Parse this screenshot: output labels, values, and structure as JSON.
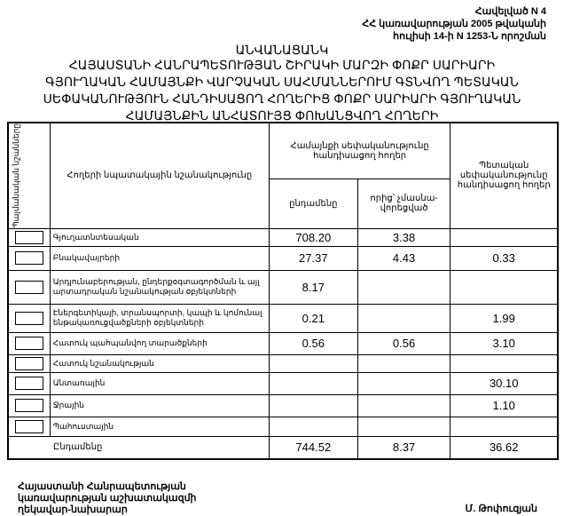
{
  "annex": {
    "line1": "Հավելված N 4",
    "line2": "ՀՀ կառավարության 2005 թվականի",
    "line3": "հուլիսի 14-ի N 1253-Ն որոշման"
  },
  "title": "ԱՆՎԱՆԱՑԱՆԿ",
  "subtitle": "ՀԱՅԱՍՏԱՆԻ ՀԱՆՐԱՊԵՏՈՒԹՅԱՆ ՇԻՐԱԿԻ ՄԱՐԶԻ ՓՈՔՐ ՍԱՐԻԱՐԻ ԳՅՈՒՂԱԿԱՆ ՀԱՄԱՅՆՔԻ ՎԱՐՉԱԿԱՆ ՍԱՀՄԱՆՆԵՐՈՒՄ ԳՏՆՎՈՂ ՊԵՏԱԿԱՆ ՍԵՓԱԿԱՆՈՒԹՅՈՒՆ ՀԱՆԴԻՍԱՑՈՂ ՀՈՂԵՐԻՑ ՓՈՔՐ ՍԱՐԻԱՐԻ ԳՅՈՒՂԱԿԱՆ ՀԱՄԱՅՆՔԻՆ ԱՆՀԱՏՈՒՅՑ ՓՈԽԱՆՑՎՈՂ ՀՈՂԵՐԻ",
  "table": {
    "headers": {
      "symbols": "Պայմանական նշանները",
      "purpose": "Հողերի նպատակային նշանակությունը",
      "community": "Համայնքի սեփականությունը հանդիսացող հողեր",
      "total": "ընդամենը",
      "not_privatized": "որից՝ չմասնա-վորեցված",
      "state": "Պետական սեփականությունը հանդիսացող հողեր"
    },
    "rows": [
      {
        "name": "Գյուղատնտեսական",
        "total": "708.20",
        "not_privatized": "3.38",
        "state": ""
      },
      {
        "name": "Բնակավայրերի",
        "total": "27.37",
        "not_privatized": "4.43",
        "state": "0.33"
      },
      {
        "name": "Արդյունաբերության, ընդերքօգտագործման և այլ արտադրական նշանակության օբյեկտների",
        "total": "8.17",
        "not_privatized": "",
        "state": ""
      },
      {
        "name": "Էներգետիկայի, տրանսպորտի, կապի և կոմունալ ենթակառուցվածքների օբյեկտների",
        "total": "0.21",
        "not_privatized": "",
        "state": "1.99"
      },
      {
        "name": "Հատուկ պահպանվող տարածքների",
        "total": "0.56",
        "not_privatized": "0.56",
        "state": "3.10"
      },
      {
        "name": "Հատուկ նշանակության",
        "total": "",
        "not_privatized": "",
        "state": ""
      },
      {
        "name": "Անտառային",
        "total": "",
        "not_privatized": "",
        "state": "30.10"
      },
      {
        "name": "Ջրային",
        "total": "",
        "not_privatized": "",
        "state": "1.10"
      },
      {
        "name": "Պահուստային",
        "total": "",
        "not_privatized": "",
        "state": ""
      }
    ],
    "sum": {
      "name": "Ընդամենը",
      "total": "744.52",
      "not_privatized": "8.37",
      "state": "36.62"
    }
  },
  "signature": {
    "line1": "Հայաստանի Հանրապետության",
    "line2": "կառավարության աշխատակազմի",
    "line3": "ղեկավար-նախարար",
    "name": "Մ. Թոփուզյան"
  }
}
